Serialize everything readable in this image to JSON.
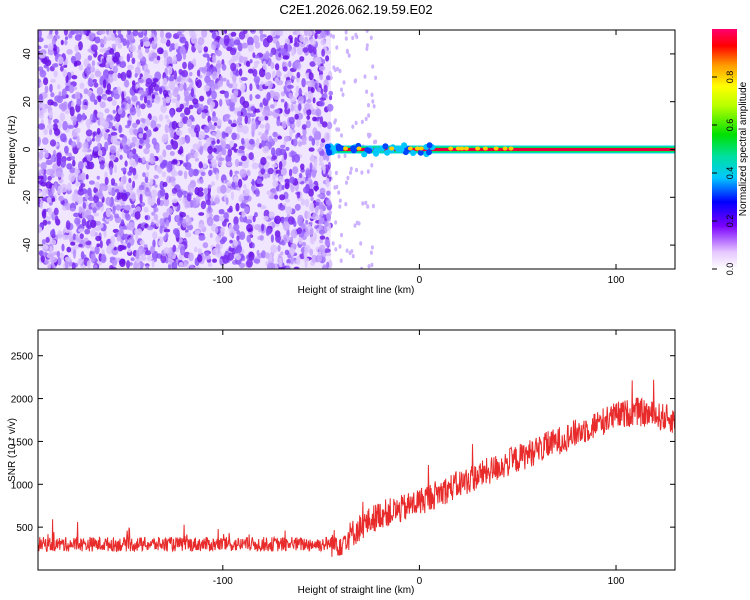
{
  "title": "C2E1.2026.062.19.59.E02",
  "spectrogram": {
    "xlabel": "Height of straight line (km)",
    "ylabel": "Frequency (Hz)",
    "xlim": [
      -194,
      130
    ],
    "ylim": [
      -50,
      50
    ],
    "xticks": [
      -100,
      0,
      100
    ],
    "yticks": [
      -40,
      -20,
      0,
      20,
      40
    ],
    "noise_region_x": [
      -194,
      -45
    ],
    "carrier_start_x": -47,
    "carrier_freq": 0
  },
  "colorbar": {
    "label": "Normalized spectral amplitude",
    "ticks": [
      0.0,
      0.2,
      0.4,
      0.6,
      0.8
    ],
    "range": [
      0.0,
      1.0
    ]
  },
  "colors": {
    "noise": "#6a0fe0",
    "snr_line": "#e82a2a",
    "carrier": "#e8003a"
  },
  "chart_data": [
    {
      "type": "heatmap",
      "title": "C2E1.2026.062.19.59.E02",
      "xlabel": "Height of straight line (km)",
      "ylabel": "Frequency (Hz)",
      "xlim": [
        -194,
        130
      ],
      "ylim": [
        -50,
        50
      ],
      "colorbar_label": "Normalized spectral amplitude",
      "features": {
        "broadband_noise_x": [
          -194,
          -45
        ],
        "carrier_line_freq_hz": 0,
        "carrier_line_x": [
          -47,
          130
        ]
      }
    },
    {
      "type": "line",
      "xlabel": "Height of straight line (km)",
      "ylabel": "SNR (10 * v/v)",
      "xlim": [
        -194,
        130
      ],
      "ylim": [
        0,
        2800
      ],
      "xticks": [
        -100,
        0,
        100
      ],
      "yticks": [
        500,
        1000,
        1500,
        2000,
        2500
      ],
      "trend": {
        "x": [
          -194,
          -150,
          -100,
          -50,
          -40,
          -30,
          -20,
          -10,
          0,
          10,
          20,
          30,
          40,
          50,
          60,
          70,
          80,
          90,
          100,
          110,
          120,
          130
        ],
        "y": [
          300,
          300,
          300,
          300,
          320,
          500,
          650,
          700,
          800,
          900,
          1000,
          1100,
          1200,
          1300,
          1400,
          1500,
          1600,
          1700,
          1800,
          1850,
          1800,
          1750
        ]
      }
    }
  ]
}
